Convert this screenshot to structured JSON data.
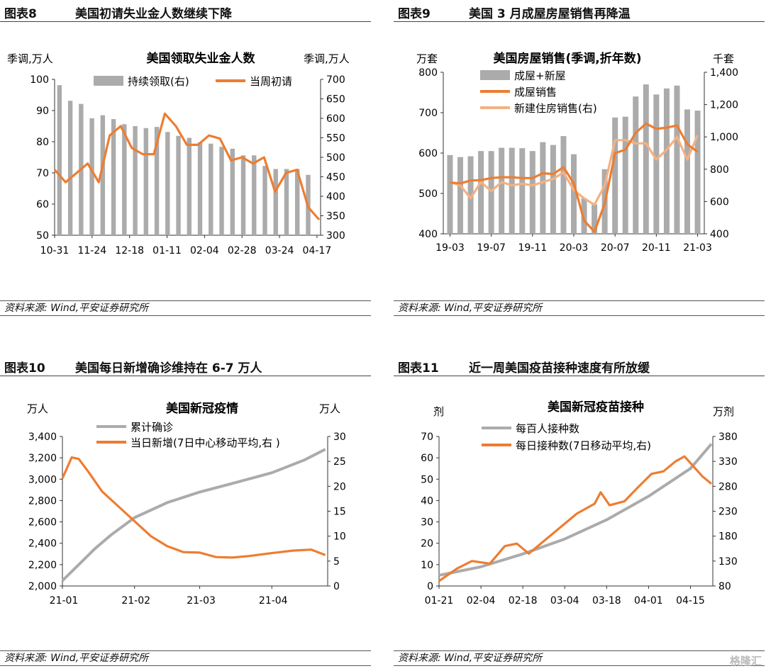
{
  "panels": [
    {
      "fig": "图表8",
      "title": "美国初请失业金人数继续下降",
      "source": "资料来源: Wind,平安证券研究所"
    },
    {
      "fig": "图表9",
      "title": "美国 3 月成屋房屋销售再降温",
      "source": "资料来源: Wind,平安证券研究所"
    },
    {
      "fig": "图表10",
      "title": "美国每日新增确诊维持在 6-7 万人",
      "source": "资料来源: Wind,平安证券研究所"
    },
    {
      "fig": "图表11",
      "title": "近一周美国疫苗接种速度有所放缓",
      "source": "资料来源: Wind,平安证券研究所"
    }
  ],
  "watermark": "格隆汇",
  "colors": {
    "orange": "#ED7D31",
    "gray": "#ABABAB",
    "lightorange": "#F4B183"
  },
  "chart_data": [
    {
      "type": "bar+line",
      "title": "美国领取失业金人数",
      "ylabel_left": "季调,万人",
      "ylabel_right": "季调,万人",
      "ylim_left": [
        50,
        100
      ],
      "yticks_left": [
        50,
        60,
        70,
        80,
        90,
        100
      ],
      "ylim_right": [
        300,
        700
      ],
      "yticks_right": [
        300,
        350,
        400,
        450,
        500,
        550,
        600,
        650,
        700
      ],
      "xtick_labels": [
        "10-31",
        "11-24",
        "12-18",
        "01-11",
        "02-04",
        "02-28",
        "03-24",
        "04-17"
      ],
      "xtick_index": [
        0,
        3.4,
        6.8,
        10.2,
        13.6,
        17,
        20.4,
        23.8
      ],
      "series": [
        {
          "name": "持续领取(右)",
          "kind": "bar",
          "axis": "right",
          "values": [
            685,
            645,
            637,
            600,
            608,
            598,
            585,
            580,
            575,
            578,
            565,
            555,
            550,
            538,
            535,
            527,
            522,
            505,
            505,
            478,
            470,
            470,
            470,
            455
          ]
        },
        {
          "name": "当周初请",
          "kind": "line",
          "axis": "left",
          "x": [
            0,
            1,
            2,
            3,
            4,
            5,
            6,
            7,
            8,
            9,
            10,
            11,
            12,
            13,
            14,
            15,
            16,
            17,
            18,
            19,
            20,
            21,
            22,
            23,
            24
          ],
          "values": [
            71,
            67,
            70,
            73,
            67,
            82,
            85,
            78,
            76,
            76,
            89,
            85,
            79,
            79,
            82,
            81,
            74,
            75,
            73,
            75,
            64,
            70,
            71,
            59,
            55
          ]
        }
      ]
    },
    {
      "type": "bar+line",
      "title": "美国房屋销售(季调,折年数)",
      "ylabel_left": "万套",
      "ylabel_right": "千套",
      "ylim_left": [
        400,
        800
      ],
      "yticks_left": [
        400,
        500,
        600,
        700,
        800
      ],
      "ylim_right": [
        400,
        1400
      ],
      "yticks_right": [
        "400",
        "600",
        "800",
        "1,000",
        "1,200",
        "1,400"
      ],
      "xtick_labels": [
        "19-03",
        "19-07",
        "19-11",
        "20-03",
        "20-07",
        "20-11",
        "21-03"
      ],
      "xtick_index": [
        0,
        4,
        8,
        12,
        16,
        20,
        24
      ],
      "series": [
        {
          "name": "成屋+新屋",
          "kind": "bar",
          "axis": "left",
          "values": [
            595,
            590,
            592,
            605,
            605,
            613,
            613,
            612,
            605,
            627,
            620,
            642,
            597,
            488,
            473,
            560,
            688,
            690,
            740,
            770,
            745,
            760,
            767,
            708,
            705
          ]
        },
        {
          "name": "成屋销售",
          "kind": "line",
          "axis": "left",
          "values": [
            527,
            525,
            532,
            533,
            538,
            540,
            540,
            538,
            538,
            550,
            548,
            565,
            525,
            433,
            405,
            475,
            600,
            608,
            650,
            673,
            660,
            663,
            668,
            622,
            603
          ]
        },
        {
          "name": "新建住房销售(右)",
          "kind": "line",
          "axis": "right",
          "values": [
            720,
            700,
            620,
            720,
            665,
            720,
            700,
            710,
            700,
            720,
            740,
            780,
            670,
            620,
            580,
            700,
            980,
            980,
            960,
            960,
            860,
            920,
            1000,
            860,
            1010
          ]
        }
      ]
    },
    {
      "type": "line",
      "title": "美国新冠疫情",
      "ylabel_left": "万人",
      "ylabel_right": "万人",
      "ylim_left": [
        2000,
        3400
      ],
      "yticks_left": [
        "2,000",
        "2,200",
        "2,400",
        "2,600",
        "2,800",
        "3,000",
        "3,200",
        "3,400"
      ],
      "ylim_right": [
        0,
        30
      ],
      "yticks_right": [
        0,
        5,
        10,
        15,
        20,
        25,
        30
      ],
      "xtick_labels": [
        "21-01",
        "21-02",
        "21-03",
        "21-04"
      ],
      "series": [
        {
          "name": "累计确诊",
          "axis": "left",
          "x": [
            "01-01",
            "01-08",
            "01-15",
            "01-22",
            "02-01",
            "02-15",
            "03-01",
            "03-15",
            "04-01",
            "04-15",
            "04-24"
          ],
          "values": [
            2050,
            2200,
            2350,
            2480,
            2640,
            2780,
            2880,
            2960,
            3060,
            3180,
            3280
          ]
        },
        {
          "name": "当日新增(7日中心移动平均,右 )",
          "axis": "right",
          "x": [
            "01-01",
            "01-05",
            "01-08",
            "01-12",
            "01-18",
            "01-25",
            "02-01",
            "02-08",
            "02-15",
            "02-22",
            "03-01",
            "03-08",
            "03-15",
            "03-22",
            "04-01",
            "04-10",
            "04-18",
            "04-24"
          ],
          "values": [
            21.6,
            25.8,
            25.5,
            23,
            19,
            16,
            13,
            10,
            8,
            6.8,
            6.7,
            5.8,
            5.7,
            6,
            6.6,
            7.1,
            7.3,
            6.2
          ]
        }
      ]
    },
    {
      "type": "line",
      "title": "美国新冠疫苗接种",
      "ylabel_left": "剂",
      "ylabel_right": "万剂",
      "ylim_left": [
        0,
        70
      ],
      "yticks_left": [
        0,
        10,
        20,
        30,
        40,
        50,
        60,
        70
      ],
      "ylim_right": [
        80,
        380
      ],
      "yticks_right": [
        80,
        130,
        180,
        230,
        280,
        330,
        380
      ],
      "xtick_labels": [
        "01-21",
        "02-04",
        "02-18",
        "03-04",
        "03-18",
        "04-01",
        "04-15"
      ],
      "series": [
        {
          "name": "每百人接种数",
          "axis": "left",
          "x": [
            "01-21",
            "02-04",
            "02-18",
            "03-04",
            "03-18",
            "04-01",
            "04-15",
            "04-22"
          ],
          "values": [
            5,
            9,
            15,
            22,
            31,
            42,
            55,
            66.5
          ]
        },
        {
          "name": "每日接种数(7日移动平均,右)",
          "axis": "right",
          "x": [
            "01-21",
            "01-27",
            "02-01",
            "02-07",
            "02-12",
            "02-16",
            "02-20",
            "02-24",
            "03-02",
            "03-08",
            "03-14",
            "03-16",
            "03-19",
            "03-24",
            "03-28",
            "04-02",
            "04-06",
            "04-10",
            "04-13",
            "04-16",
            "04-19",
            "04-22"
          ],
          "values": [
            90,
            115,
            130,
            125,
            160,
            165,
            145,
            165,
            195,
            225,
            245,
            268,
            242,
            250,
            275,
            305,
            310,
            330,
            340,
            320,
            300,
            285
          ]
        }
      ]
    }
  ]
}
